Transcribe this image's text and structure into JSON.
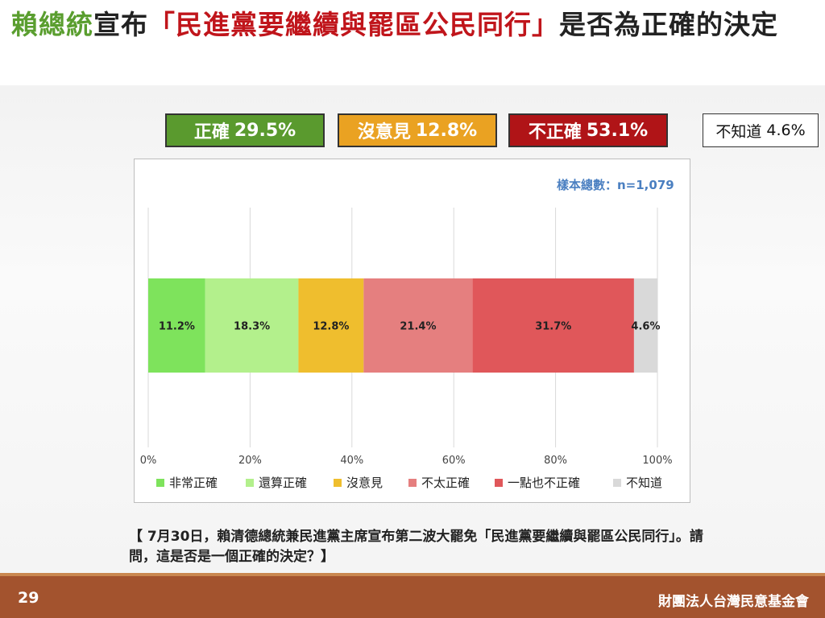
{
  "title": {
    "part1": "賴總統",
    "part2": "宣布",
    "part3": "「民進黨要繼續與罷區公民同行」",
    "part4": "是否為正確的決定"
  },
  "summary": {
    "correct_label": "正確",
    "correct_value": "29.5%",
    "neutral_label": "沒意見",
    "neutral_value": "12.8%",
    "wrong_label": "不正確",
    "wrong_value": "53.1%",
    "dontknow_label": "不知道",
    "dontknow_value": "4.6%"
  },
  "sample_size": "樣本總數：n=1,079",
  "chart_data": {
    "type": "bar",
    "orientation": "horizontal-stacked-100",
    "xlim": [
      0,
      100
    ],
    "ticks": [
      "0%",
      "20%",
      "40%",
      "60%",
      "80%",
      "100%"
    ],
    "tick_values": [
      0,
      20,
      40,
      60,
      80,
      100
    ],
    "grid": true,
    "legend_position": "bottom",
    "series": [
      {
        "name": "非常正確",
        "value": 11.2,
        "label": "11.2%",
        "color": "#7ee35c"
      },
      {
        "name": "還算正確",
        "value": 18.3,
        "label": "18.3%",
        "color": "#b3f08c"
      },
      {
        "name": "沒意見",
        "value": 12.8,
        "label": "12.8%",
        "color": "#efbe2e"
      },
      {
        "name": "不太正確",
        "value": 21.4,
        "label": "21.4%",
        "color": "#e57f7f"
      },
      {
        "name": "一點也不正確",
        "value": 31.7,
        "label": "31.7%",
        "color": "#e0575a"
      },
      {
        "name": "不知道",
        "value": 4.6,
        "label": "4.6%",
        "color": "#d9d9d9"
      }
    ]
  },
  "question": "【 7月30日，賴清德總統兼民進黨主席宣布第二波大罷免「民進黨要繼續與罷區公民同行」。請問，這是否是一個正確的決定？】",
  "footer": {
    "page_number": "29",
    "organization": "財團法人台灣民意基金會"
  },
  "colors": {
    "title_green": "#5a9e2f",
    "title_red": "#c0151b",
    "footer": "#a3532e",
    "sample_text": "#4a7fc1"
  }
}
